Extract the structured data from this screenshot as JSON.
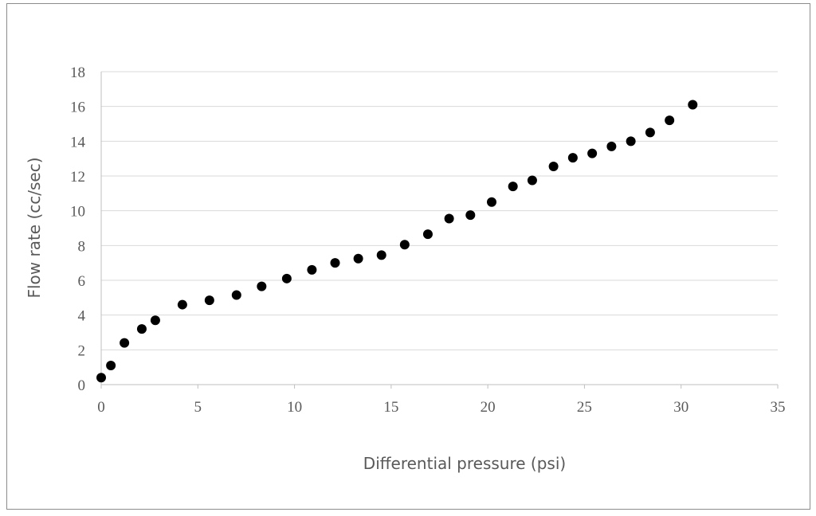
{
  "chart_data": {
    "type": "scatter",
    "title": "",
    "xlabel": "Differential pressure (psi)",
    "ylabel": "Flow rate (cc/sec)",
    "xlim": [
      0,
      35
    ],
    "ylim": [
      0,
      18
    ],
    "x_ticks": [
      "0",
      "5",
      "10",
      "15",
      "20",
      "25",
      "30",
      "35"
    ],
    "y_ticks": [
      "0",
      "2",
      "4",
      "6",
      "8",
      "10",
      "12",
      "14",
      "16",
      "18"
    ],
    "grid": "horizontal",
    "legend": "none",
    "marker_color": "#000000",
    "series": [
      {
        "x": [
          0.0,
          0.5,
          1.2,
          2.1,
          2.8,
          4.2,
          5.6,
          7.0,
          8.3,
          9.6,
          10.9,
          12.1,
          13.3,
          14.5,
          15.7,
          16.9,
          18.0,
          19.1,
          20.2,
          21.3,
          22.3,
          23.4,
          24.4,
          25.4,
          26.4,
          27.4,
          28.4,
          29.4,
          30.6
        ],
        "y": [
          0.4,
          1.1,
          2.4,
          3.2,
          3.7,
          4.6,
          4.85,
          5.15,
          5.65,
          6.1,
          6.6,
          7.0,
          7.25,
          7.45,
          8.05,
          8.65,
          9.55,
          9.75,
          10.5,
          11.4,
          11.75,
          12.55,
          13.05,
          13.3,
          13.7,
          14.0,
          14.5,
          15.2,
          16.1
        ]
      }
    ]
  }
}
